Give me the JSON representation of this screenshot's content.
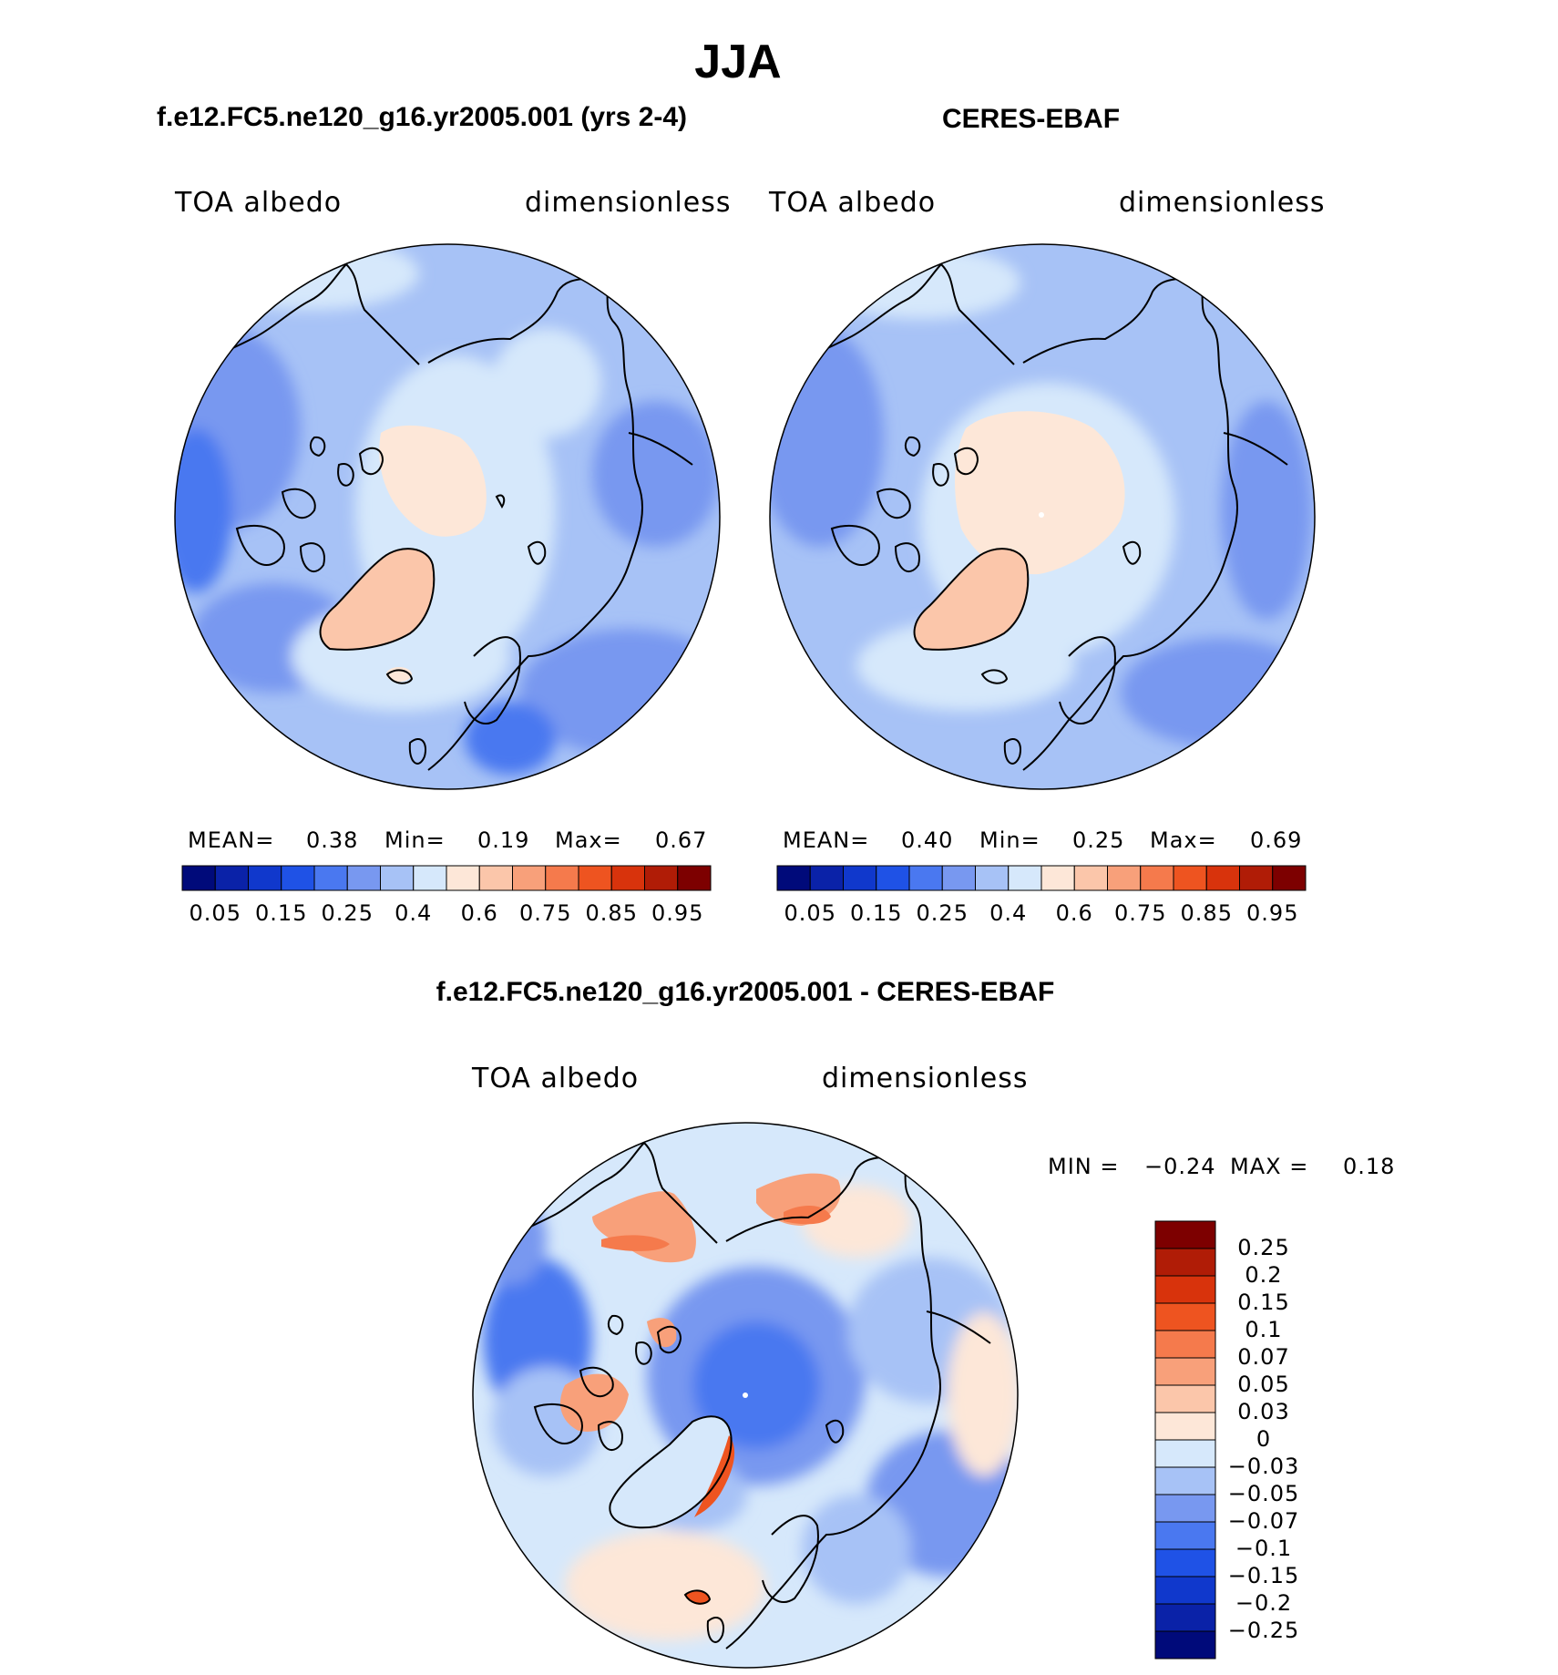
{
  "title": "JJA",
  "panels": [
    {
      "id": "model",
      "title": "f.e12.FC5.ne120_g16.yr2005.001 (yrs 2-4)",
      "variable": "TOA albedo",
      "units": "dimensionless",
      "stats": {
        "mean_label": "MEAN=",
        "mean": "0.38",
        "min_label": "Min=",
        "min": "0.19",
        "max_label": "Max=",
        "max": "0.67"
      }
    },
    {
      "id": "obs",
      "title": "CERES-EBAF",
      "variable": "TOA albedo",
      "units": "dimensionless",
      "stats": {
        "mean_label": "MEAN=",
        "mean": "0.40",
        "min_label": "Min=",
        "min": "0.25",
        "max_label": "Max=",
        "max": "0.69"
      }
    },
    {
      "id": "diff",
      "title": "f.e12.FC5.ne120_g16.yr2005.001 - CERES-EBAF",
      "variable": "TOA albedo",
      "units": "dimensionless",
      "stats": {
        "min_label": "MIN =",
        "min": "−0.24",
        "max_label": "MAX =",
        "max": "0.18"
      }
    }
  ],
  "colorbar_abs": {
    "colors": [
      "#000a7a",
      "#0a22a8",
      "#1038cc",
      "#1f52e6",
      "#4a78f0",
      "#7898f0",
      "#a7c2f6",
      "#d6e8fb",
      "#fde7d8",
      "#fbc6aa",
      "#f8a07a",
      "#f57a4c",
      "#ee5420",
      "#d8330c",
      "#b01c06",
      "#7d0000"
    ],
    "labels": [
      "0.05",
      "0.15",
      "0.25",
      "0.4",
      "0.6",
      "0.75",
      "0.85",
      "0.95"
    ]
  },
  "colorbar_diff": {
    "colors": [
      "#000a7a",
      "#0a22a8",
      "#1038cc",
      "#1f52e6",
      "#4a78f0",
      "#7898f0",
      "#a7c2f6",
      "#d6e8fb",
      "#fde7d8",
      "#fbc6aa",
      "#f8a07a",
      "#f57a4c",
      "#ee5420",
      "#d8330c",
      "#b01c06",
      "#7d0000"
    ],
    "labels": [
      "−0.25",
      "−0.2",
      "−0.15",
      "−0.1",
      "−0.07",
      "−0.05",
      "−0.03",
      "0",
      "0.03",
      "0.05",
      "0.07",
      "0.1",
      "0.15",
      "0.2",
      "0.25"
    ]
  }
}
